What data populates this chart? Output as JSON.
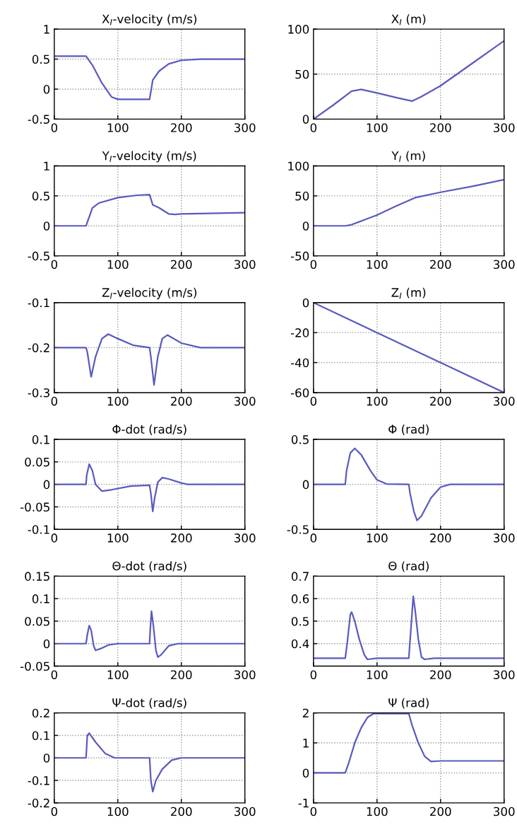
{
  "chart_data": [
    {
      "type": "line",
      "title": "X$_{I}$-velocity (m/s)",
      "x": [
        0,
        50,
        60,
        75,
        90,
        100,
        150,
        155,
        165,
        180,
        200,
        230,
        300
      ],
      "series": [
        {
          "color": "#5a5ac0",
          "values": [
            0.55,
            0.55,
            0.4,
            0.1,
            -0.13,
            -0.17,
            -0.17,
            0.15,
            0.3,
            0.42,
            0.48,
            0.5,
            0.5
          ]
        }
      ],
      "xlim": [
        0,
        300
      ],
      "xticks": [
        0,
        100,
        200,
        300
      ],
      "ylim": [
        -0.5,
        1
      ],
      "yticks": [
        -0.5,
        0,
        0.5,
        1
      ],
      "grid": true
    },
    {
      "type": "line",
      "title": "X$_{I}$ (m)",
      "x": [
        0,
        30,
        60,
        75,
        100,
        130,
        155,
        170,
        200,
        250,
        300
      ],
      "series": [
        {
          "color": "#5a5ac0",
          "values": [
            0,
            15,
            31,
            33,
            29,
            24,
            20,
            25,
            37,
            62,
            87
          ]
        }
      ],
      "xlim": [
        0,
        300
      ],
      "xticks": [
        0,
        100,
        200,
        300
      ],
      "ylim": [
        0,
        100
      ],
      "yticks": [
        0,
        50,
        100
      ],
      "grid": true
    },
    {
      "type": "line",
      "title": "Y$_{I}$-velocity (m/s)",
      "x": [
        0,
        50,
        55,
        60,
        70,
        100,
        130,
        150,
        155,
        165,
        180,
        190,
        200,
        300
      ],
      "series": [
        {
          "color": "#5a5ac0",
          "values": [
            0,
            0,
            0.15,
            0.3,
            0.38,
            0.47,
            0.51,
            0.52,
            0.35,
            0.3,
            0.2,
            0.19,
            0.2,
            0.22
          ]
        }
      ],
      "xlim": [
        0,
        300
      ],
      "xticks": [
        0,
        100,
        200,
        300
      ],
      "ylim": [
        -0.5,
        1
      ],
      "yticks": [
        -0.5,
        0,
        0.5,
        1
      ],
      "grid": true
    },
    {
      "type": "line",
      "title": "Y$_{I}$ (m)",
      "x": [
        0,
        50,
        60,
        80,
        100,
        130,
        160,
        200,
        250,
        300
      ],
      "series": [
        {
          "color": "#5a5ac0",
          "values": [
            0,
            0,
            2,
            10,
            18,
            33,
            47,
            56,
            66,
            77
          ]
        }
      ],
      "xlim": [
        0,
        300
      ],
      "xticks": [
        0,
        100,
        200,
        300
      ],
      "ylim": [
        -50,
        100
      ],
      "yticks": [
        -50,
        0,
        50,
        100
      ],
      "grid": true
    },
    {
      "type": "line",
      "title": "Z$_{I}$-velocity (m/s)",
      "x": [
        0,
        50,
        52,
        58,
        65,
        75,
        85,
        100,
        125,
        150,
        152,
        157,
        163,
        170,
        178,
        200,
        230,
        300
      ],
      "series": [
        {
          "color": "#5a5ac0",
          "values": [
            -0.2,
            -0.2,
            -0.21,
            -0.265,
            -0.22,
            -0.18,
            -0.17,
            -0.18,
            -0.195,
            -0.2,
            -0.22,
            -0.283,
            -0.22,
            -0.18,
            -0.172,
            -0.19,
            -0.2,
            -0.2
          ]
        }
      ],
      "xlim": [
        0,
        300
      ],
      "xticks": [
        0,
        100,
        200,
        300
      ],
      "ylim": [
        -0.3,
        -0.1
      ],
      "yticks": [
        -0.3,
        -0.2,
        -0.1
      ],
      "grid": true
    },
    {
      "type": "line",
      "title": "Z$_{I}$ (m)",
      "x": [
        0,
        100,
        200,
        300
      ],
      "series": [
        {
          "color": "#5a5ac0",
          "values": [
            0,
            -20,
            -40,
            -60
          ]
        }
      ],
      "xlim": [
        0,
        300
      ],
      "xticks": [
        0,
        100,
        200,
        300
      ],
      "ylim": [
        -60,
        0
      ],
      "yticks": [
        -60,
        -40,
        -20,
        0
      ],
      "grid": true
    },
    {
      "type": "line",
      "title": "Φ-dot (rad/s)",
      "x": [
        0,
        50,
        51,
        55,
        60,
        65,
        75,
        90,
        120,
        150,
        152,
        155,
        158,
        163,
        170,
        180,
        200,
        210,
        300
      ],
      "series": [
        {
          "color": "#5a5ac0",
          "values": [
            0,
            0,
            0.02,
            0.045,
            0.03,
            0,
            -0.015,
            -0.012,
            -0.004,
            -0.002,
            -0.02,
            -0.06,
            -0.03,
            0.005,
            0.015,
            0.012,
            0.003,
            0,
            0
          ]
        }
      ],
      "xlim": [
        0,
        300
      ],
      "xticks": [
        0,
        100,
        200,
        300
      ],
      "ylim": [
        -0.1,
        0.1
      ],
      "yticks": [
        -0.1,
        -0.05,
        0,
        0.05,
        0.1
      ],
      "grid": true
    },
    {
      "type": "line",
      "title": "Φ (rad)",
      "x": [
        0,
        50,
        52,
        58,
        65,
        75,
        90,
        100,
        115,
        150,
        152,
        158,
        163,
        170,
        185,
        200,
        215,
        300
      ],
      "series": [
        {
          "color": "#5a5ac0",
          "values": [
            0,
            0,
            0.15,
            0.35,
            0.4,
            0.33,
            0.15,
            0.05,
            0.005,
            0,
            -0.1,
            -0.3,
            -0.4,
            -0.35,
            -0.15,
            -0.03,
            0,
            0
          ]
        }
      ],
      "xlim": [
        0,
        300
      ],
      "xticks": [
        0,
        100,
        200,
        300
      ],
      "ylim": [
        -0.5,
        0.5
      ],
      "yticks": [
        -0.5,
        0,
        0.5
      ],
      "grid": true
    },
    {
      "type": "line",
      "title": "Θ-dot (rad/s)",
      "x": [
        0,
        50,
        52,
        55,
        58,
        62,
        65,
        75,
        85,
        100,
        150,
        151,
        153,
        156,
        160,
        163,
        168,
        180,
        195,
        300
      ],
      "series": [
        {
          "color": "#5a5ac0",
          "values": [
            0,
            0,
            0.02,
            0.04,
            0.03,
            -0.005,
            -0.015,
            -0.01,
            -0.003,
            0,
            0,
            0.03,
            0.072,
            0.04,
            -0.015,
            -0.03,
            -0.025,
            -0.005,
            0,
            0
          ]
        }
      ],
      "xlim": [
        0,
        300
      ],
      "xticks": [
        0,
        100,
        200,
        300
      ],
      "ylim": [
        -0.05,
        0.15
      ],
      "yticks": [
        -0.05,
        0,
        0.05,
        0.1,
        0.15
      ],
      "grid": true
    },
    {
      "type": "line",
      "title": "Θ (rad)",
      "x": [
        0,
        50,
        53,
        58,
        60,
        65,
        72,
        80,
        85,
        100,
        150,
        153,
        157,
        160,
        165,
        170,
        175,
        190,
        300
      ],
      "series": [
        {
          "color": "#5a5ac0",
          "values": [
            0.335,
            0.335,
            0.4,
            0.53,
            0.54,
            0.5,
            0.42,
            0.35,
            0.33,
            0.335,
            0.335,
            0.45,
            0.61,
            0.55,
            0.42,
            0.34,
            0.33,
            0.335,
            0.335
          ]
        }
      ],
      "xlim": [
        0,
        300
      ],
      "xticks": [
        0,
        100,
        200,
        300
      ],
      "ylim": [
        0.3,
        0.7
      ],
      "yticks": [
        0.4,
        0.5,
        0.6,
        0.7
      ],
      "grid": true
    },
    {
      "type": "line",
      "title": "Ψ-dot (rad/s)",
      "x": [
        0,
        50,
        52,
        55,
        65,
        80,
        95,
        150,
        152,
        155,
        160,
        170,
        185,
        200,
        300
      ],
      "series": [
        {
          "color": "#5a5ac0",
          "values": [
            0,
            0,
            0.1,
            0.11,
            0.07,
            0.02,
            0,
            0,
            -0.1,
            -0.15,
            -0.1,
            -0.05,
            -0.01,
            0,
            0
          ]
        }
      ],
      "xlim": [
        0,
        300
      ],
      "xticks": [
        0,
        100,
        200,
        300
      ],
      "ylim": [
        -0.2,
        0.2
      ],
      "yticks": [
        -0.2,
        -0.1,
        0,
        0.1,
        0.2
      ],
      "grid": true
    },
    {
      "type": "line",
      "title": "Ψ (rad)",
      "x": [
        0,
        50,
        55,
        65,
        75,
        85,
        95,
        150,
        155,
        165,
        175,
        185,
        200,
        300
      ],
      "series": [
        {
          "color": "#5a5ac0",
          "values": [
            0,
            0,
            0.3,
            1.0,
            1.5,
            1.85,
            1.98,
            1.98,
            1.6,
            1.0,
            0.55,
            0.38,
            0.4,
            0.4
          ]
        }
      ],
      "xlim": [
        0,
        300
      ],
      "xticks": [
        0,
        100,
        200,
        300
      ],
      "ylim": [
        -1,
        2
      ],
      "yticks": [
        -1,
        0,
        1,
        2
      ],
      "grid": true
    }
  ]
}
